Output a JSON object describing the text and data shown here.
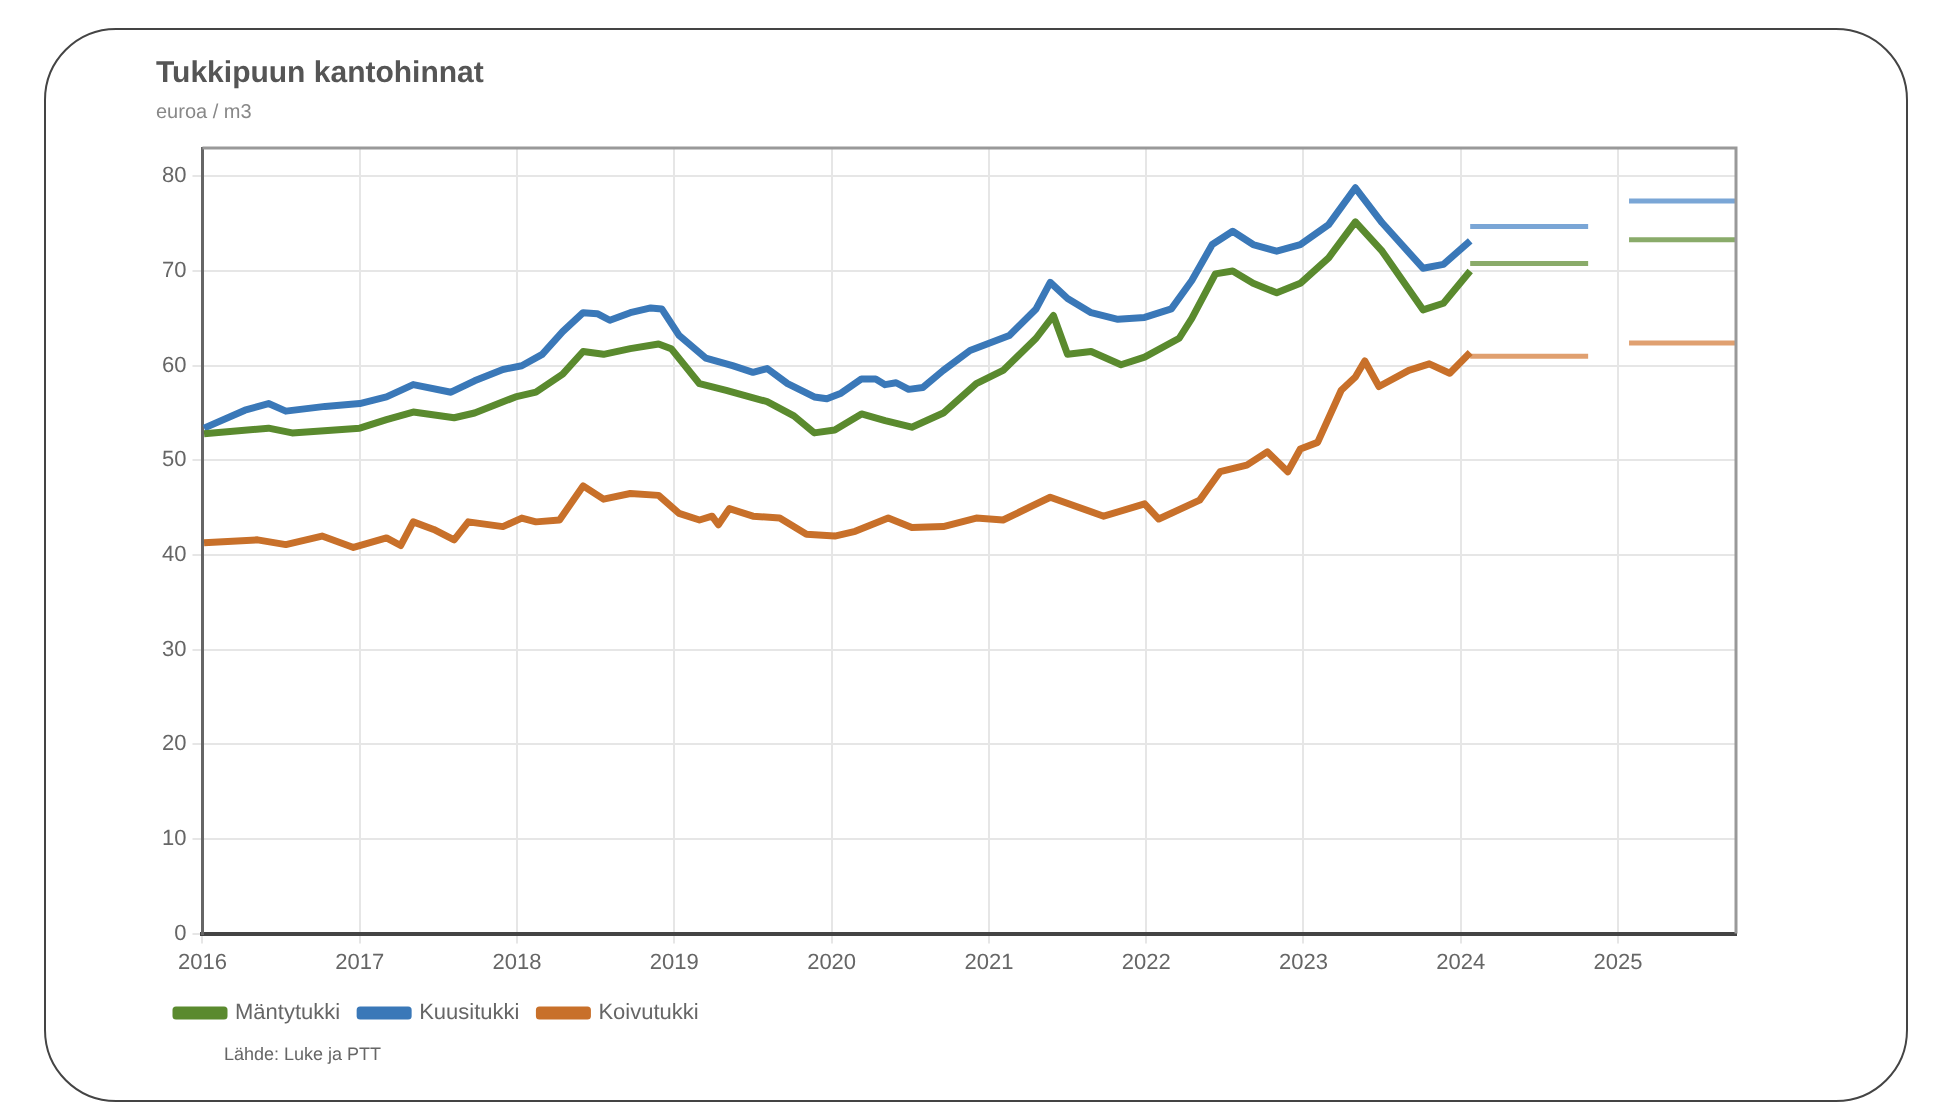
{
  "chart_data": {
    "type": "line",
    "title": "Tukkipuun kantohinnat",
    "subtitle": "euroa / m3",
    "xlim": [
      2016,
      2025.75
    ],
    "xticks": [
      2016,
      2017,
      2018,
      2019,
      2020,
      2021,
      2022,
      2023,
      2024,
      2025
    ],
    "ylim": [
      0,
      83
    ],
    "yticks": [
      0,
      10,
      20,
      30,
      40,
      50,
      60,
      70,
      80
    ],
    "grid": true,
    "legend": "bottom left",
    "marker": "none",
    "line_style": "solid",
    "annotations": [
      "Lähde: Luke ja PTT"
    ],
    "series": [
      {
        "name": "Mäntytukki",
        "color": "#5a8a2e",
        "x": [
          2016.01,
          2016.42,
          2016.57,
          2017.0,
          2017.17,
          2017.34,
          2017.6,
          2017.73,
          2017.99,
          2018.12,
          2018.29,
          2018.42,
          2018.55,
          2018.72,
          2018.9,
          2018.98,
          2019.16,
          2019.33,
          2019.59,
          2019.76,
          2019.89,
          2020.02,
          2020.19,
          2020.34,
          2020.51,
          2020.71,
          2020.92,
          2021.09,
          2021.3,
          2021.41,
          2021.5,
          2021.65,
          2021.84,
          2021.99,
          2022.21,
          2022.29,
          2022.44,
          2022.55,
          2022.68,
          2022.83,
          2022.98,
          2023.16,
          2023.33,
          2023.5,
          2023.76,
          2023.89,
          2024.06
        ],
        "values": [
          52.8,
          53.4,
          52.9,
          53.4,
          54.3,
          55.1,
          54.5,
          55,
          56.7,
          57.2,
          59.1,
          61.5,
          61.2,
          61.8,
          62.3,
          61.8,
          58.1,
          57.4,
          56.2,
          54.7,
          52.9,
          53.2,
          54.9,
          54.2,
          53.5,
          55,
          58.1,
          59.5,
          62.9,
          65.3,
          61.2,
          61.5,
          60.1,
          60.9,
          62.9,
          65,
          69.7,
          70,
          68.7,
          67.7,
          68.7,
          71.4,
          75.2,
          72.1,
          65.9,
          66.6,
          70
        ]
      },
      {
        "name": "Kuusitukki",
        "color": "#3a78b8",
        "x": [
          2016.01,
          2016.27,
          2016.42,
          2016.53,
          2016.78,
          2017.0,
          2017.17,
          2017.34,
          2017.58,
          2017.73,
          2017.91,
          2018.03,
          2018.16,
          2018.29,
          2018.42,
          2018.51,
          2018.59,
          2018.72,
          2018.85,
          2018.92,
          2019.03,
          2019.2,
          2019.37,
          2019.5,
          2019.59,
          2019.72,
          2019.89,
          2019.97,
          2020.06,
          2020.19,
          2020.28,
          2020.34,
          2020.41,
          2020.49,
          2020.58,
          2020.71,
          2020.88,
          2021.13,
          2021.3,
          2021.39,
          2021.5,
          2021.65,
          2021.82,
          2021.99,
          2022.16,
          2022.29,
          2022.42,
          2022.55,
          2022.68,
          2022.83,
          2022.98,
          2023.16,
          2023.33,
          2023.5,
          2023.76,
          2023.89,
          2024.06
        ],
        "values": [
          53.4,
          55.3,
          56,
          55.2,
          55.7,
          56,
          56.7,
          58,
          57.2,
          58.4,
          59.6,
          60,
          61.2,
          63.6,
          65.6,
          65.5,
          64.8,
          65.6,
          66.1,
          66,
          63.2,
          60.8,
          60,
          59.3,
          59.7,
          58.1,
          56.7,
          56.5,
          57.1,
          58.6,
          58.6,
          58,
          58.2,
          57.5,
          57.7,
          59.5,
          61.6,
          63.2,
          66,
          68.8,
          67.1,
          65.6,
          64.9,
          65.1,
          66,
          69,
          72.8,
          74.2,
          72.8,
          72.1,
          72.8,
          74.9,
          78.8,
          75.1,
          70.3,
          70.7,
          73.2
        ]
      },
      {
        "name": "Koivutukki",
        "color": "#c8702a",
        "x": [
          2016.01,
          2016.35,
          2016.53,
          2016.76,
          2016.96,
          2017.17,
          2017.26,
          2017.34,
          2017.47,
          2017.6,
          2017.69,
          2017.91,
          2018.03,
          2018.12,
          2018.27,
          2018.42,
          2018.55,
          2018.72,
          2018.9,
          2019.03,
          2019.16,
          2019.24,
          2019.28,
          2019.35,
          2019.5,
          2019.67,
          2019.84,
          2020.02,
          2020.15,
          2020.36,
          2020.51,
          2020.71,
          2020.92,
          2021.09,
          2021.39,
          2021.73,
          2021.99,
          2022.08,
          2022.34,
          2022.47,
          2022.64,
          2022.77,
          2022.9,
          2022.98,
          2023.09,
          2023.24,
          2023.33,
          2023.39,
          2023.48,
          2023.67,
          2023.8,
          2023.93,
          2024.06
        ],
        "values": [
          41.3,
          41.6,
          41.1,
          42,
          40.8,
          41.8,
          41,
          43.5,
          42.7,
          41.6,
          43.5,
          43,
          43.9,
          43.5,
          43.7,
          47.3,
          45.9,
          46.5,
          46.3,
          44.4,
          43.7,
          44.1,
          43.2,
          44.9,
          44.1,
          43.9,
          42.2,
          42,
          42.5,
          43.9,
          42.9,
          43,
          43.9,
          43.7,
          46.1,
          44.1,
          45.4,
          43.8,
          45.8,
          48.8,
          49.5,
          50.9,
          48.8,
          51.2,
          51.9,
          57.4,
          58.8,
          60.5,
          57.8,
          59.5,
          60.2,
          59.2,
          61.4
        ]
      },
      {
        "color": "#8aab6a",
        "x": [
          2024.06,
          2024.81
        ],
        "values": [
          70.8,
          70.8
        ]
      },
      {
        "color": "#8aab6a",
        "x": [
          2025.07,
          2025.75
        ],
        "values": [
          73.3,
          73.3
        ]
      },
      {
        "color": "#7aa6d6",
        "x": [
          2024.06,
          2024.81
        ],
        "values": [
          74.7,
          74.7
        ]
      },
      {
        "color": "#7aa6d6",
        "x": [
          2025.07,
          2025.75
        ],
        "values": [
          77.4,
          77.4
        ]
      },
      {
        "color": "#e0a070",
        "x": [
          2024.06,
          2024.81
        ],
        "values": [
          61,
          61
        ]
      },
      {
        "color": "#e0a070",
        "x": [
          2025.07,
          2025.75
        ],
        "values": [
          62.4,
          62.4
        ]
      }
    ]
  }
}
